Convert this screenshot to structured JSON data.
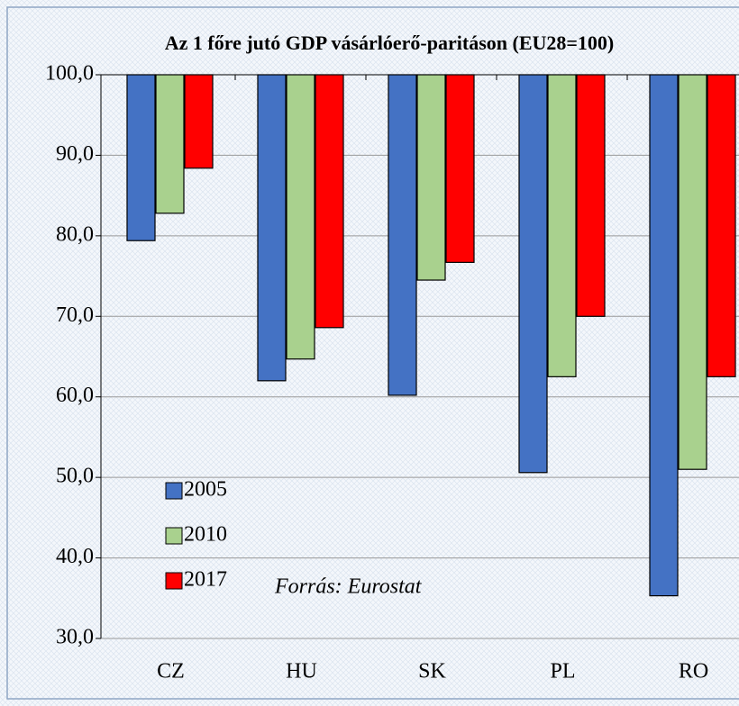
{
  "chart_data": {
    "type": "bar",
    "title": "Az 1 főre jutó GDP vásárlóerő-paritáson (EU28=100)",
    "categories": [
      "CZ",
      "HU",
      "SK",
      "PL",
      "RO"
    ],
    "series": [
      {
        "name": "2005",
        "color": "#4472c4",
        "values": [
          79.4,
          62.0,
          60.2,
          50.6,
          35.3
        ]
      },
      {
        "name": "2010",
        "color": "#a9d18e",
        "values": [
          82.8,
          64.7,
          74.5,
          62.5,
          51.0
        ]
      },
      {
        "name": "2017",
        "color": "#ff0000",
        "values": [
          88.4,
          68.6,
          76.7,
          70.0,
          62.5
        ]
      }
    ],
    "ylim": [
      30,
      100
    ],
    "yticks": [
      {
        "value": 30,
        "label": "30,0"
      },
      {
        "value": 40,
        "label": "40,0"
      },
      {
        "value": 50,
        "label": "50,0"
      },
      {
        "value": 60,
        "label": "60,0"
      },
      {
        "value": 70,
        "label": "70,0"
      },
      {
        "value": 80,
        "label": "80,0"
      },
      {
        "value": 90,
        "label": "90,0"
      },
      {
        "value": 100,
        "label": "100,0"
      }
    ],
    "grid": true,
    "legend": "lower left",
    "annotation": "Forrás: Eurostat"
  }
}
